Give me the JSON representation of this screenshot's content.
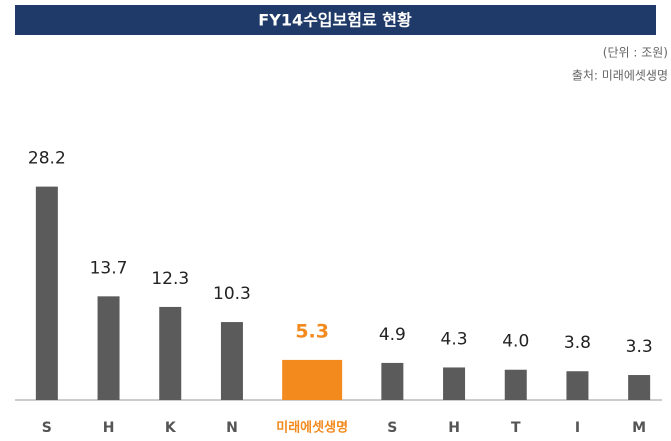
{
  "chart_data": {
    "type": "bar",
    "title": "FY14수입보험료 현황",
    "notes": [
      "(단위 : 조원)",
      "출처: 미래에셋생명"
    ],
    "categories": [
      "S",
      "H",
      "K",
      "N",
      "미래에셋생명",
      "S",
      "H",
      "T",
      "I",
      "M"
    ],
    "values": [
      28.2,
      13.7,
      12.3,
      10.3,
      5.3,
      4.9,
      4.3,
      4.0,
      3.8,
      3.3
    ],
    "value_labels": [
      "28.2",
      "13.7",
      "12.3",
      "10.3",
      "5.3",
      "4.9",
      "4.3",
      "4.0",
      "3.8",
      "3.3"
    ],
    "colors": [
      "#5b5b5b",
      "#5b5b5b",
      "#5b5b5b",
      "#5b5b5b",
      "#f28a1e",
      "#5b5b5b",
      "#5b5b5b",
      "#5b5b5b",
      "#5b5b5b",
      "#5b5b5b"
    ],
    "highlight_index": 4,
    "ylim": [
      0,
      30
    ]
  }
}
